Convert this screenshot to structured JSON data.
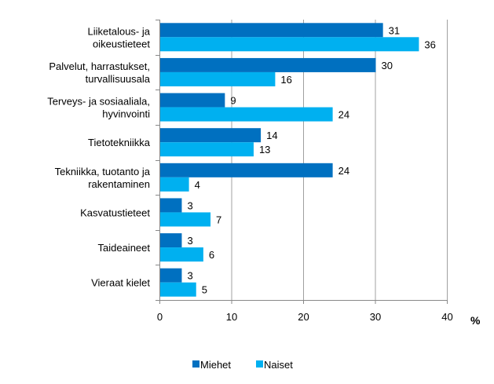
{
  "chart_data": {
    "type": "bar",
    "orientation": "horizontal",
    "categories": [
      [
        "Liiketalous- ja",
        "oikeustieteet"
      ],
      [
        "Palvelut, harrastukset,",
        "turvallisuusala"
      ],
      [
        "Terveys- ja sosiaaliala,",
        "hyvinvointi"
      ],
      [
        "Tietotekniikka"
      ],
      [
        "Tekniikka, tuotanto ja",
        "rakentaminen"
      ],
      [
        "Kasvatustieteet"
      ],
      [
        "Taideaineet"
      ],
      [
        "Vieraat kielet"
      ]
    ],
    "series": [
      {
        "name": "Miehet",
        "color": "#0070C0",
        "values": [
          31,
          30,
          9,
          14,
          24,
          3,
          3,
          3
        ]
      },
      {
        "name": "Naiset",
        "color": "#00B0F0",
        "values": [
          36,
          16,
          24,
          13,
          4,
          7,
          6,
          5
        ]
      }
    ],
    "xlim": [
      0,
      40
    ],
    "xticks": [
      "0",
      "10",
      "20",
      "30",
      "40"
    ],
    "xunit": "%",
    "grid": "vertical",
    "grid_color": "#A0A0A0",
    "legend_position": "bottom",
    "data_labels": true
  }
}
